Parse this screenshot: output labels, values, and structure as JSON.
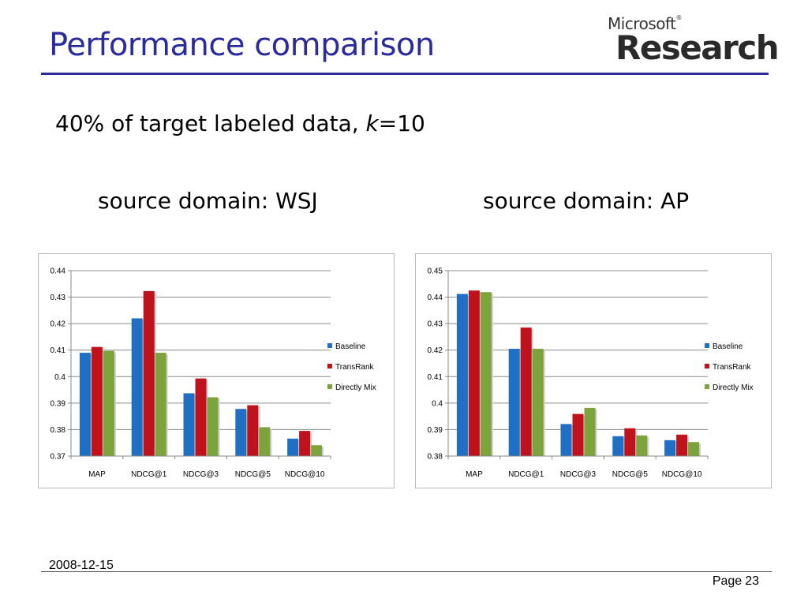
{
  "slide": {
    "title": "Performance comparison",
    "logo_top": "Microsoft",
    "logo_bottom": "Research",
    "subtitle_prefix": "40% of target labeled data, ",
    "subtitle_var": "k",
    "subtitle_suffix": "=10",
    "caption_left": "source domain: WSJ",
    "caption_right": "source domain: AP",
    "date": "2008-12-15",
    "page_label": "Page",
    "page_number": "23",
    "title_color": "#2b2b9c"
  },
  "chart_data": [
    {
      "type": "bar",
      "categories": [
        "MAP",
        "NDCG@1",
        "NDCG@3",
        "NDCG@5",
        "NDCG@10"
      ],
      "series": [
        {
          "name": "Baseline",
          "color": "#1f6fc5",
          "values": [
            0.409,
            0.422,
            0.3937,
            0.3878,
            0.3766
          ]
        },
        {
          "name": "TransRank",
          "color": "#c0121c",
          "values": [
            0.4112,
            0.4323,
            0.3993,
            0.3892,
            0.3795
          ]
        },
        {
          "name": "Directly Mix",
          "color": "#7da33c",
          "values": [
            0.4097,
            0.409,
            0.3922,
            0.3809,
            0.3741
          ]
        }
      ],
      "ylim": [
        0.37,
        0.44
      ],
      "yticks": [
        "0.37",
        "0.38",
        "0.39",
        "0.4",
        "0.41",
        "0.42",
        "0.43",
        "0.44"
      ],
      "grid": true,
      "legend": "right"
    },
    {
      "type": "bar",
      "categories": [
        "MAP",
        "NDCG@1",
        "NDCG@3",
        "NDCG@5",
        "NDCG@10"
      ],
      "series": [
        {
          "name": "Baseline",
          "color": "#1f6fc5",
          "values": [
            0.4412,
            0.4205,
            0.3921,
            0.3875,
            0.386
          ]
        },
        {
          "name": "TransRank",
          "color": "#c0121c",
          "values": [
            0.4425,
            0.4285,
            0.3959,
            0.3905,
            0.3881
          ]
        },
        {
          "name": "Directly Mix",
          "color": "#7da33c",
          "values": [
            0.4419,
            0.4205,
            0.3982,
            0.3878,
            0.3853
          ]
        }
      ],
      "ylim": [
        0.38,
        0.45
      ],
      "yticks": [
        "0.38",
        "0.39",
        "0.4",
        "0.41",
        "0.42",
        "0.43",
        "0.44",
        "0.45"
      ],
      "grid": true,
      "legend": "right"
    }
  ]
}
